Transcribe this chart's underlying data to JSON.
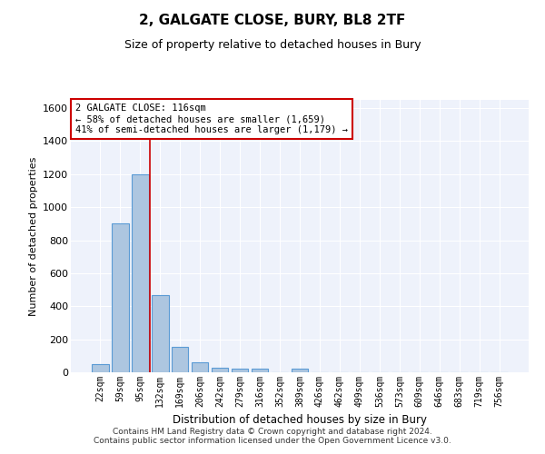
{
  "title": "2, GALGATE CLOSE, BURY, BL8 2TF",
  "subtitle": "Size of property relative to detached houses in Bury",
  "xlabel": "Distribution of detached houses by size in Bury",
  "ylabel": "Number of detached properties",
  "categories": [
    "22sqm",
    "59sqm",
    "95sqm",
    "132sqm",
    "169sqm",
    "206sqm",
    "242sqm",
    "279sqm",
    "316sqm",
    "352sqm",
    "389sqm",
    "426sqm",
    "462sqm",
    "499sqm",
    "536sqm",
    "573sqm",
    "609sqm",
    "646sqm",
    "683sqm",
    "719sqm",
    "756sqm"
  ],
  "values": [
    50,
    900,
    1200,
    470,
    155,
    60,
    28,
    20,
    20,
    0,
    20,
    0,
    0,
    0,
    0,
    0,
    0,
    0,
    0,
    0,
    0
  ],
  "bar_color": "#adc6e0",
  "bar_edge_color": "#5b9bd5",
  "ylim": [
    0,
    1650
  ],
  "yticks": [
    0,
    200,
    400,
    600,
    800,
    1000,
    1200,
    1400,
    1600
  ],
  "property_line_color": "#cc0000",
  "annotation_box_text": "2 GALGATE CLOSE: 116sqm\n← 58% of detached houses are smaller (1,659)\n41% of semi-detached houses are larger (1,179) →",
  "annotation_box_color": "#cc0000",
  "annotation_box_facecolor": "white",
  "background_color": "#eef2fb",
  "grid_color": "white",
  "footer": "Contains HM Land Registry data © Crown copyright and database right 2024.\nContains public sector information licensed under the Open Government Licence v3.0."
}
